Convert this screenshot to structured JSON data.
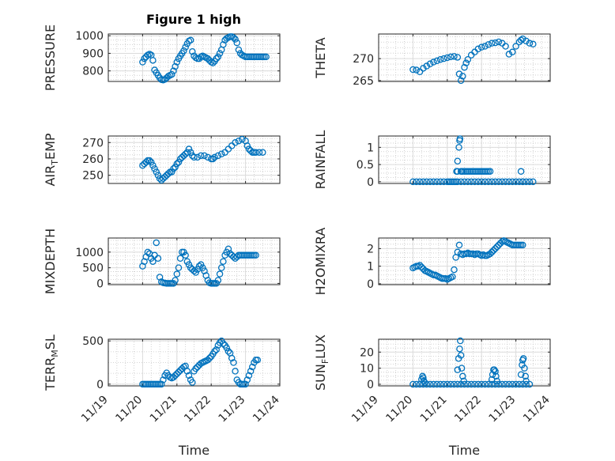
{
  "figure": {
    "title": "Figure 1 high",
    "marker_color": "#0072BD",
    "grid_color": "#c8c8c8",
    "axis_color": "#262626"
  },
  "chart_data": [
    {
      "id": "pressure",
      "type": "scatter",
      "title": "Figure 1 high",
      "ylabel": "PRESSURE",
      "xlabel": "",
      "xlim": [
        "11/19",
        "11/24"
      ],
      "ylim": [
        740,
        1010
      ],
      "yticks": [
        800,
        900,
        1000
      ],
      "xticks": [],
      "grid": true,
      "x": [
        1.0,
        1.05,
        1.1,
        1.15,
        1.2,
        1.25,
        1.3,
        1.35,
        1.4,
        1.45,
        1.5,
        1.55,
        1.6,
        1.65,
        1.7,
        1.75,
        1.8,
        1.85,
        1.9,
        1.95,
        2.0,
        2.05,
        2.1,
        2.15,
        2.2,
        2.25,
        2.3,
        2.35,
        2.4,
        2.45,
        2.5,
        2.55,
        2.6,
        2.65,
        2.7,
        2.75,
        2.8,
        2.85,
        2.9,
        2.95,
        3.0,
        3.05,
        3.1,
        3.15,
        3.2,
        3.25,
        3.3,
        3.35,
        3.4,
        3.45,
        3.5,
        3.55,
        3.6,
        3.65,
        3.7,
        3.75,
        3.8,
        3.85,
        3.9,
        3.95,
        4.0,
        4.05,
        4.1,
        4.15,
        4.2,
        4.25,
        4.3,
        4.35,
        4.4,
        4.45,
        4.5,
        4.55,
        4.6
      ],
      "y": [
        850,
        870,
        880,
        890,
        895,
        890,
        860,
        805,
        790,
        775,
        760,
        750,
        748,
        752,
        760,
        770,
        775,
        780,
        800,
        825,
        850,
        870,
        885,
        900,
        915,
        935,
        955,
        970,
        975,
        910,
        885,
        875,
        870,
        870,
        880,
        885,
        880,
        875,
        870,
        860,
        850,
        845,
        855,
        870,
        880,
        900,
        920,
        950,
        975,
        985,
        990,
        995,
        995,
        990,
        980,
        960,
        920,
        900,
        890,
        885,
        880,
        880,
        880,
        880,
        880,
        880,
        880,
        880,
        880,
        880,
        880,
        880,
        880
      ]
    },
    {
      "id": "theta",
      "type": "scatter",
      "ylabel": "THETA",
      "xlabel": "",
      "xlim": [
        "11/19",
        "11/24"
      ],
      "ylim": [
        264.8,
        275.6
      ],
      "yticks": [
        265,
        270
      ],
      "xticks": [],
      "grid": true,
      "x": [
        1.0,
        1.1,
        1.2,
        1.3,
        1.4,
        1.5,
        1.6,
        1.7,
        1.8,
        1.9,
        2.0,
        2.1,
        2.2,
        2.3,
        2.35,
        2.4,
        2.45,
        2.5,
        2.55,
        2.6,
        2.7,
        2.8,
        2.9,
        3.0,
        3.1,
        3.2,
        3.3,
        3.4,
        3.5,
        3.6,
        3.7,
        3.8,
        3.9,
        4.0,
        4.1,
        4.15,
        4.2,
        4.3,
        4.4,
        4.5
      ],
      "y": [
        267.5,
        267.4,
        267.0,
        267.8,
        268.3,
        268.8,
        269.2,
        269.5,
        269.8,
        270.0,
        270.2,
        270.4,
        270.5,
        270.3,
        266.5,
        265.0,
        266.0,
        268.0,
        269.0,
        269.8,
        270.8,
        271.5,
        272.2,
        272.6,
        272.8,
        273.2,
        273.5,
        273.6,
        273.8,
        273.5,
        272.8,
        271.0,
        271.5,
        272.8,
        273.8,
        274.2,
        274.5,
        274.0,
        273.5,
        273.3
      ]
    },
    {
      "id": "air_temp",
      "type": "scatter",
      "ylabel": "AIR_TEMP",
      "xlabel": "",
      "xlim": [
        "11/19",
        "11/24"
      ],
      "ylim": [
        245,
        274
      ],
      "yticks": [
        250,
        260,
        270
      ],
      "xticks": [],
      "grid": true,
      "x": [
        1.0,
        1.05,
        1.1,
        1.15,
        1.2,
        1.25,
        1.3,
        1.35,
        1.4,
        1.45,
        1.5,
        1.55,
        1.6,
        1.65,
        1.7,
        1.75,
        1.8,
        1.85,
        1.9,
        1.95,
        2.0,
        2.05,
        2.1,
        2.15,
        2.2,
        2.25,
        2.3,
        2.35,
        2.4,
        2.45,
        2.5,
        2.6,
        2.7,
        2.8,
        2.9,
        3.0,
        3.05,
        3.1,
        3.2,
        3.3,
        3.4,
        3.5,
        3.6,
        3.7,
        3.8,
        3.9,
        4.0,
        4.05,
        4.1,
        4.15,
        4.2,
        4.25,
        4.3,
        4.4,
        4.5
      ],
      "y": [
        256,
        257,
        258,
        259,
        259,
        258,
        256,
        254,
        252,
        250,
        248,
        247,
        248,
        249,
        250,
        251,
        252,
        252,
        254,
        255,
        257,
        258,
        260,
        261,
        262,
        263,
        264,
        266,
        264,
        262,
        261,
        261,
        262,
        262,
        261,
        260,
        260,
        261,
        262,
        263,
        264,
        266,
        268,
        270,
        271,
        272,
        271,
        268,
        266,
        265,
        264,
        264,
        264,
        264,
        264
      ]
    },
    {
      "id": "rainfall",
      "type": "scatter",
      "ylabel": "RAINFALL",
      "xlabel": "",
      "xlim": [
        "11/19",
        "11/24"
      ],
      "ylim": [
        -0.05,
        1.33
      ],
      "yticks": [
        0,
        0.5,
        1
      ],
      "xticks": [],
      "grid": true,
      "x": [
        1.0,
        1.1,
        1.2,
        1.3,
        1.4,
        1.5,
        1.6,
        1.7,
        1.8,
        1.9,
        2.0,
        2.05,
        2.1,
        2.15,
        2.2,
        2.25,
        2.3,
        2.4,
        2.5,
        2.6,
        2.7,
        2.8,
        2.9,
        3.0,
        3.1,
        3.2,
        3.3,
        3.4,
        3.5,
        3.6,
        3.7,
        3.8,
        3.9,
        4.0,
        4.1,
        4.2,
        4.3,
        4.4,
        4.5,
        2.27,
        2.3,
        2.3,
        2.34,
        2.36,
        2.37,
        2.4,
        2.42,
        2.45,
        2.5,
        2.55,
        2.6,
        2.65,
        2.7,
        2.75,
        2.8,
        2.85,
        2.9,
        2.95,
        3.0,
        3.05,
        3.1,
        3.15,
        3.2,
        3.25,
        4.15,
        4.2
      ],
      "y": [
        0,
        0,
        0,
        0,
        0,
        0,
        0,
        0,
        0,
        0,
        0,
        0,
        0,
        0,
        0,
        0,
        0,
        0,
        0,
        0,
        0,
        0,
        0,
        0,
        0,
        0,
        0,
        0,
        0,
        0,
        0,
        0,
        0,
        0,
        0,
        0,
        0,
        0,
        0,
        0.3,
        0.6,
        0.3,
        1.0,
        1.2,
        1.25,
        0.3,
        0.3,
        0.3,
        0.3,
        0.3,
        0.3,
        0.3,
        0.3,
        0.3,
        0.3,
        0.3,
        0.3,
        0.3,
        0.3,
        0.3,
        0.3,
        0.3,
        0.3,
        0.3,
        0.3,
        0
      ]
    },
    {
      "id": "mixdepth",
      "type": "scatter",
      "ylabel": "MIXDEPTH",
      "xlabel": "",
      "xlim": [
        "11/19",
        "11/24"
      ],
      "ylim": [
        -40,
        1450
      ],
      "yticks": [
        0,
        500,
        1000
      ],
      "xticks": [],
      "grid": true,
      "x": [
        1.0,
        1.05,
        1.1,
        1.15,
        1.2,
        1.25,
        1.3,
        1.35,
        1.4,
        1.45,
        1.5,
        1.55,
        1.6,
        1.65,
        1.7,
        1.75,
        1.8,
        1.85,
        1.9,
        1.95,
        2.0,
        2.05,
        2.1,
        2.15,
        2.2,
        2.25,
        2.3,
        2.35,
        2.4,
        2.45,
        2.5,
        2.55,
        2.6,
        2.65,
        2.7,
        2.75,
        2.8,
        2.85,
        2.9,
        2.95,
        3.0,
        3.05,
        3.1,
        3.15,
        3.2,
        3.25,
        3.3,
        3.35,
        3.4,
        3.45,
        3.5,
        3.55,
        3.6,
        3.65,
        3.7,
        3.75,
        3.8,
        3.85,
        3.9,
        3.95,
        4.0,
        4.05,
        4.1,
        4.15,
        4.2,
        4.25,
        4.3
      ],
      "y": [
        550,
        700,
        850,
        1000,
        950,
        800,
        700,
        900,
        1300,
        800,
        200,
        50,
        20,
        10,
        0,
        0,
        0,
        0,
        0,
        100,
        300,
        500,
        800,
        1000,
        1000,
        900,
        700,
        600,
        500,
        450,
        400,
        350,
        450,
        550,
        600,
        500,
        400,
        250,
        100,
        20,
        0,
        0,
        0,
        0,
        100,
        300,
        500,
        700,
        900,
        1000,
        1100,
        950,
        900,
        850,
        800,
        850,
        900,
        900,
        900,
        900,
        900,
        900,
        900,
        900,
        900,
        900,
        900
      ]
    },
    {
      "id": "h2omixra",
      "type": "scatter",
      "ylabel": "H2OMIXRA",
      "xlabel": "",
      "xlim": [
        "11/19",
        "11/24"
      ],
      "ylim": [
        -0.05,
        2.6
      ],
      "yticks": [
        0,
        1,
        2
      ],
      "xticks": [],
      "grid": true,
      "x": [
        1.0,
        1.05,
        1.1,
        1.15,
        1.2,
        1.25,
        1.3,
        1.35,
        1.4,
        1.45,
        1.5,
        1.55,
        1.6,
        1.65,
        1.7,
        1.75,
        1.8,
        1.85,
        1.9,
        1.95,
        2.0,
        2.05,
        2.1,
        2.15,
        2.2,
        2.25,
        2.3,
        2.35,
        2.4,
        2.45,
        2.5,
        2.55,
        2.6,
        2.65,
        2.7,
        2.75,
        2.8,
        2.85,
        2.9,
        2.95,
        3.0,
        3.05,
        3.1,
        3.15,
        3.2,
        3.25,
        3.3,
        3.35,
        3.4,
        3.45,
        3.5,
        3.55,
        3.6,
        3.65,
        3.7,
        3.75,
        3.8,
        3.85,
        3.9,
        3.95,
        4.0,
        4.05,
        4.1,
        4.15,
        4.2
      ],
      "y": [
        0.9,
        0.95,
        1.0,
        1.0,
        1.05,
        0.95,
        0.85,
        0.75,
        0.7,
        0.65,
        0.6,
        0.55,
        0.5,
        0.5,
        0.45,
        0.4,
        0.35,
        0.3,
        0.3,
        0.3,
        0.25,
        0.3,
        0.35,
        0.4,
        0.8,
        1.5,
        1.8,
        2.2,
        1.7,
        1.65,
        1.7,
        1.7,
        1.75,
        1.7,
        1.7,
        1.7,
        1.65,
        1.7,
        1.7,
        1.65,
        1.6,
        1.65,
        1.6,
        1.6,
        1.65,
        1.7,
        1.8,
        1.9,
        2.0,
        2.1,
        2.2,
        2.3,
        2.4,
        2.45,
        2.4,
        2.35,
        2.3,
        2.25,
        2.2,
        2.2,
        2.2,
        2.2,
        2.2,
        2.2,
        2.2
      ]
    },
    {
      "id": "terr_msl",
      "type": "scatter",
      "ylabel": "TERR_MSL",
      "xlabel": "Time",
      "xlim": [
        "11/19",
        "11/24"
      ],
      "ylim": [
        -20,
        520
      ],
      "yticks": [
        0,
        500
      ],
      "xticks": [
        "11/19",
        "11/20",
        "11/21",
        "11/22",
        "11/23",
        "11/24"
      ],
      "grid": true,
      "x": [
        1.0,
        1.05,
        1.1,
        1.15,
        1.2,
        1.25,
        1.3,
        1.35,
        1.4,
        1.45,
        1.5,
        1.55,
        1.6,
        1.65,
        1.7,
        1.75,
        1.8,
        1.85,
        1.9,
        1.95,
        2.0,
        2.05,
        2.1,
        2.15,
        2.2,
        2.25,
        2.3,
        2.35,
        2.4,
        2.45,
        2.5,
        2.55,
        2.6,
        2.65,
        2.7,
        2.75,
        2.8,
        2.85,
        2.9,
        2.95,
        3.0,
        3.05,
        3.1,
        3.15,
        3.2,
        3.25,
        3.3,
        3.35,
        3.4,
        3.45,
        3.5,
        3.55,
        3.6,
        3.65,
        3.7,
        3.75,
        3.8,
        3.85,
        3.9,
        3.95,
        4.0,
        4.05,
        4.1,
        4.15,
        4.2,
        4.25,
        4.3,
        4.35
      ],
      "y": [
        0,
        0,
        0,
        0,
        0,
        0,
        0,
        0,
        0,
        0,
        0,
        0,
        50,
        100,
        130,
        100,
        80,
        70,
        80,
        100,
        120,
        140,
        160,
        180,
        200,
        210,
        150,
        100,
        50,
        20,
        150,
        180,
        200,
        220,
        240,
        250,
        260,
        270,
        280,
        300,
        320,
        350,
        380,
        400,
        450,
        480,
        500,
        470,
        450,
        420,
        380,
        360,
        300,
        250,
        150,
        50,
        20,
        0,
        0,
        0,
        0,
        50,
        100,
        150,
        200,
        250,
        280,
        280
      ]
    },
    {
      "id": "sun_flux",
      "type": "scatter",
      "ylabel": "SUN_FLUX",
      "xlabel": "Time",
      "xlim": [
        "11/19",
        "11/24"
      ],
      "ylim": [
        -1,
        28
      ],
      "yticks": [
        0,
        10,
        20
      ],
      "xticks": [
        "11/19",
        "11/20",
        "11/21",
        "11/22",
        "11/23",
        "11/24"
      ],
      "grid": true,
      "x": [
        1.0,
        1.1,
        1.2,
        1.3,
        1.4,
        1.5,
        1.6,
        1.7,
        1.8,
        1.9,
        2.0,
        2.1,
        2.2,
        2.3,
        2.4,
        2.5,
        2.6,
        2.7,
        2.8,
        2.9,
        3.0,
        3.1,
        3.2,
        3.3,
        3.4,
        3.5,
        3.6,
        3.7,
        3.8,
        3.9,
        4.0,
        4.1,
        4.2,
        4.3,
        4.4,
        1.25,
        1.28,
        1.3,
        1.32,
        1.35,
        2.3,
        2.33,
        2.36,
        2.38,
        2.4,
        2.42,
        2.45,
        2.48,
        3.3,
        3.32,
        3.35,
        3.37,
        3.4,
        3.42,
        3.45,
        4.15,
        4.18,
        4.2,
        4.22,
        4.25,
        4.28,
        4.3
      ],
      "y": [
        0,
        0,
        0,
        0,
        0,
        0,
        0,
        0,
        0,
        0,
        0,
        0,
        0,
        0,
        0,
        0,
        0,
        0,
        0,
        0,
        0,
        0,
        0,
        0,
        0,
        0,
        0,
        0,
        0,
        0,
        0,
        0,
        0,
        0,
        0,
        3,
        5,
        4,
        2,
        1,
        9,
        16,
        22,
        27,
        18,
        10,
        5,
        2,
        3,
        6,
        9,
        9,
        8,
        5,
        2,
        6,
        12,
        15,
        16,
        10,
        5,
        2
      ]
    }
  ]
}
